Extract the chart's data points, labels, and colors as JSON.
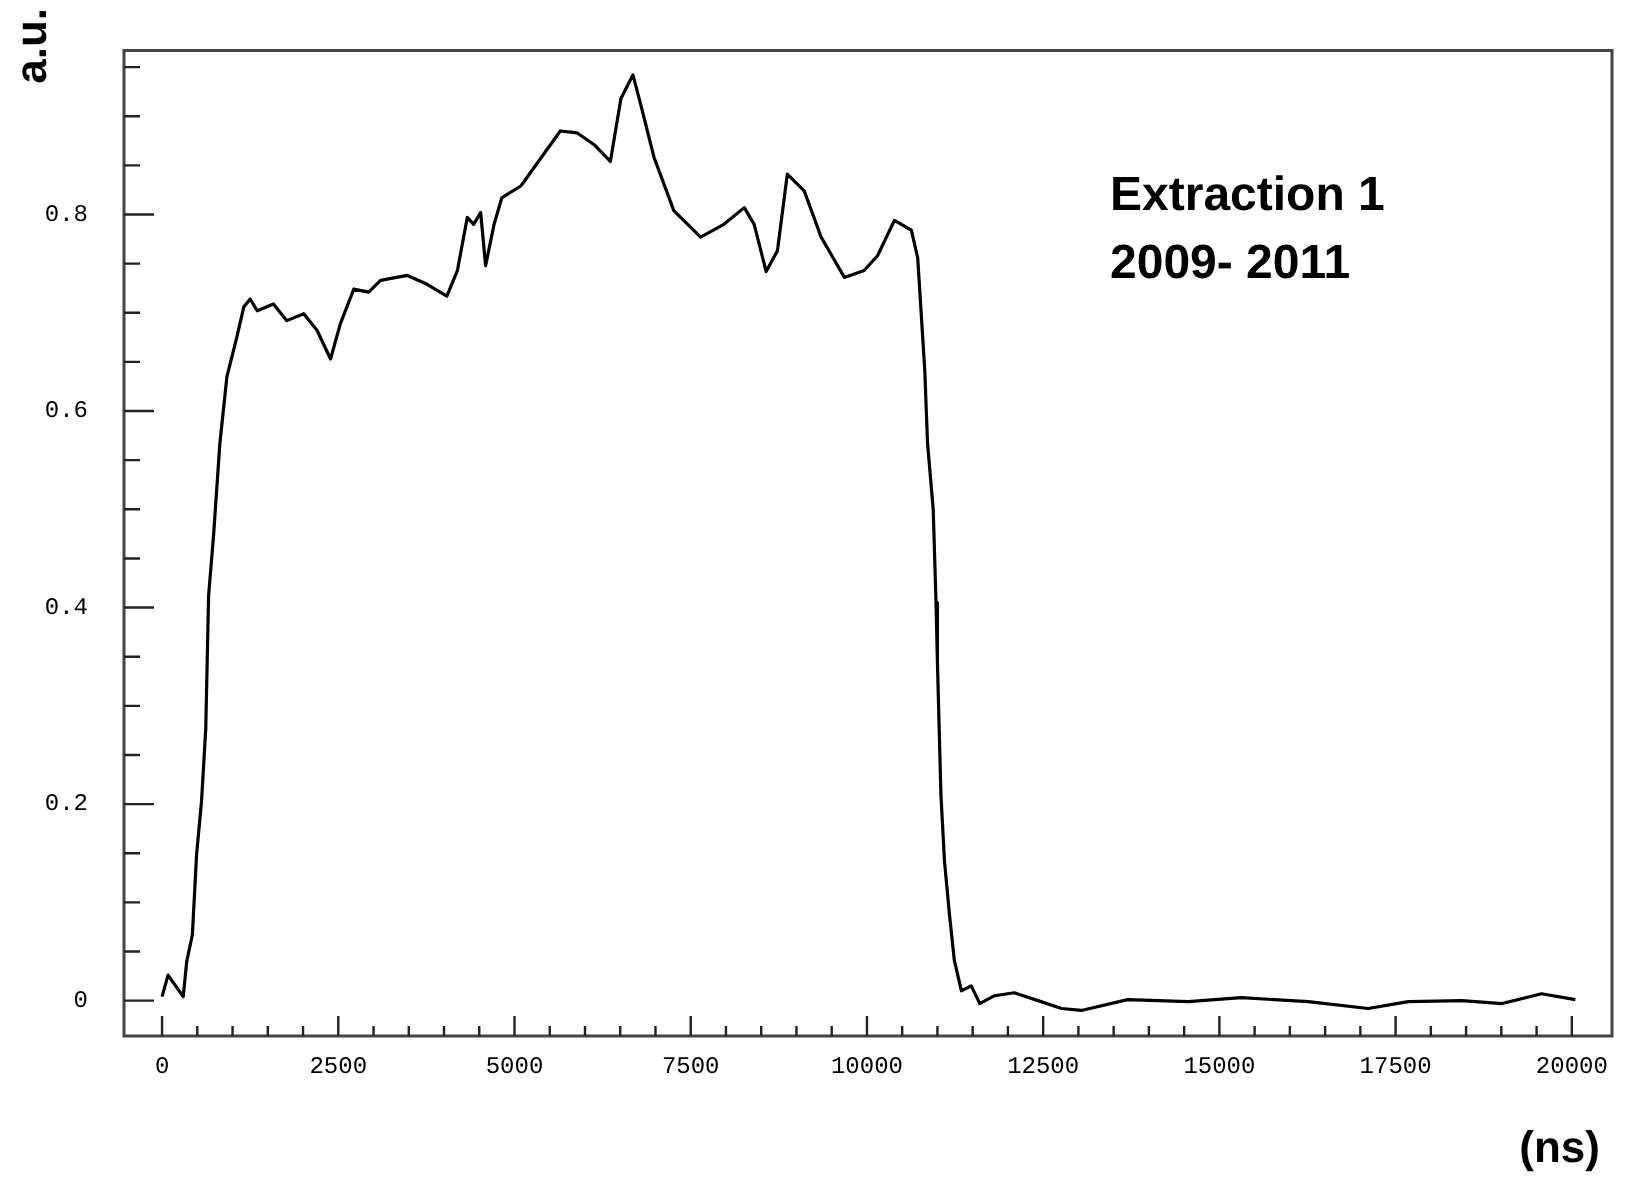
{
  "chart_data": {
    "type": "line",
    "xlabel": "(ns)",
    "ylabel": "a.u.",
    "annotations": [
      "Extraction 1\n2009- 2011"
    ],
    "xlim": [
      -540,
      20570
    ],
    "ylim": [
      -0.036,
      0.967
    ],
    "xticks": [
      0,
      {
        "value": 500,
        "label": null
      },
      {
        "value": 1000,
        "label": null
      },
      {
        "value": 1500,
        "label": null
      },
      {
        "value": 2000,
        "label": null
      },
      2500,
      {
        "value": 3000,
        "label": null
      },
      {
        "value": 3500,
        "label": null
      },
      {
        "value": 4000,
        "label": null
      },
      {
        "value": 4500,
        "label": null
      },
      5000,
      {
        "value": 5500,
        "label": null
      },
      {
        "value": 6000,
        "label": null
      },
      {
        "value": 6500,
        "label": null
      },
      {
        "value": 7000,
        "label": null
      },
      7500,
      {
        "value": 8000,
        "label": null
      },
      {
        "value": 8500,
        "label": null
      },
      {
        "value": 9000,
        "label": null
      },
      {
        "value": 9500,
        "label": null
      },
      10000,
      {
        "value": 10500,
        "label": null
      },
      {
        "value": 11000,
        "label": null
      },
      {
        "value": 11500,
        "label": null
      },
      {
        "value": 12000,
        "label": null
      },
      12500,
      {
        "value": 13000,
        "label": null
      },
      {
        "value": 13500,
        "label": null
      },
      {
        "value": 14000,
        "label": null
      },
      {
        "value": 14500,
        "label": null
      },
      15000,
      {
        "value": 15500,
        "label": null
      },
      {
        "value": 16000,
        "label": null
      },
      {
        "value": 16500,
        "label": null
      },
      {
        "value": 17000,
        "label": null
      },
      17500,
      {
        "value": 18000,
        "label": null
      },
      {
        "value": 18500,
        "label": null
      },
      {
        "value": 19000,
        "label": null
      },
      {
        "value": 19500,
        "label": null
      },
      20000
    ],
    "yticks": [
      0,
      {
        "value": 0.05,
        "label": null
      },
      {
        "value": 0.1,
        "label": null
      },
      {
        "value": 0.15,
        "label": null
      },
      0.2,
      {
        "value": 0.25,
        "label": null
      },
      {
        "value": 0.3,
        "label": null
      },
      {
        "value": 0.35,
        "label": null
      },
      0.4,
      {
        "value": 0.45,
        "label": null
      },
      {
        "value": 0.5,
        "label": null
      },
      {
        "value": 0.55,
        "label": null
      },
      0.6,
      {
        "value": 0.65,
        "label": null
      },
      {
        "value": 0.7,
        "label": null
      },
      {
        "value": 0.75,
        "label": null
      },
      0.8,
      {
        "value": 0.85,
        "label": null
      },
      {
        "value": 0.9,
        "label": null
      },
      {
        "value": 0.95,
        "label": null
      }
    ],
    "grid": false,
    "legend": false,
    "marker": "none",
    "line_style": "solid",
    "series": [
      {
        "color": "#000000",
        "x": [
          0,
          85,
          300,
          350,
          430,
          490,
          560,
          620,
          660,
          730,
          820,
          920,
          1060,
          1160,
          1250,
          1350,
          1580,
          1770,
          2010,
          2200,
          2390,
          2530,
          2720,
          2930,
          3100,
          3480,
          3760,
          4040,
          4190,
          4330,
          4420,
          4520,
          4590,
          4710,
          4820,
          5090,
          5370,
          5650,
          5890,
          6130,
          6360,
          6510,
          6680,
          6790,
          6980,
          7260,
          7640,
          7970,
          8260,
          8400,
          8570,
          8730,
          8870,
          9110,
          9350,
          9680,
          9960,
          10150,
          10390,
          10630,
          10720,
          10820,
          10860,
          10940,
          10980,
          11000,
          11050,
          11100,
          11170,
          11240,
          11340,
          11480,
          11600,
          11810,
          12090,
          12470,
          12760,
          13040,
          13700,
          14560,
          15310,
          16260,
          17110,
          17680,
          18440,
          19010,
          19570,
          20050
        ],
        "values": [
          0.004,
          0.026,
          0.004,
          0.04,
          0.067,
          0.149,
          0.203,
          0.277,
          0.412,
          0.473,
          0.567,
          0.635,
          0.675,
          0.706,
          0.714,
          0.702,
          0.709,
          0.692,
          0.699,
          0.682,
          0.653,
          0.689,
          0.724,
          0.721,
          0.733,
          0.738,
          0.729,
          0.717,
          0.743,
          0.797,
          0.79,
          0.802,
          0.748,
          0.79,
          0.817,
          0.829,
          0.857,
          0.885,
          0.883,
          0.871,
          0.854,
          0.918,
          0.942,
          0.912,
          0.858,
          0.804,
          0.777,
          0.79,
          0.807,
          0.79,
          0.742,
          0.763,
          0.841,
          0.824,
          0.777,
          0.736,
          0.743,
          0.758,
          0.794,
          0.784,
          0.756,
          0.642,
          0.567,
          0.5,
          0.405,
          0.344,
          0.209,
          0.142,
          0.088,
          0.041,
          0.01,
          0.015,
          -0.003,
          0.005,
          0.008,
          -0.001,
          -0.008,
          -0.01,
          0.001,
          -0.001,
          0.003,
          -0.001,
          -0.008,
          -0.001,
          0,
          -0.003,
          0.007,
          0.001
        ]
      }
    ]
  }
}
